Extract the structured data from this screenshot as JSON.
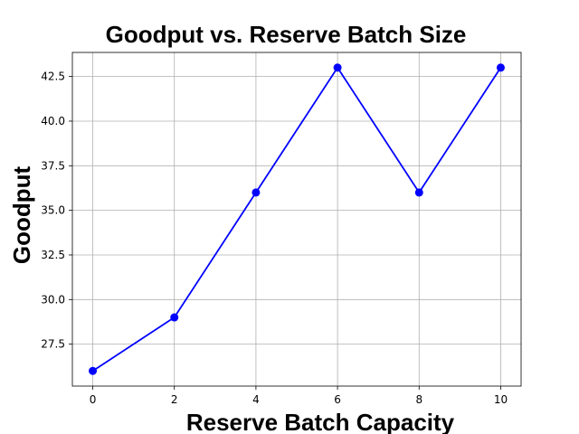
{
  "chart_data": {
    "type": "line",
    "title": "Goodput vs. Reserve Batch Size",
    "xlabel": "Reserve Batch Capacity",
    "ylabel": "Goodput",
    "x": [
      0,
      2,
      4,
      6,
      8,
      10
    ],
    "series": [
      {
        "values": [
          26,
          29,
          36,
          43,
          36,
          43
        ]
      }
    ],
    "xlim": [
      -0.5,
      10.5
    ],
    "ylim": [
      25.15,
      43.85
    ],
    "xticks": [
      0,
      2,
      4,
      6,
      8,
      10
    ],
    "xtick_labels": [
      "0",
      "2",
      "4",
      "6",
      "8",
      "10"
    ],
    "yticks": [
      27.5,
      30.0,
      32.5,
      35.0,
      37.5,
      40.0,
      42.5
    ],
    "ytick_labels": [
      "27.5",
      "30.0",
      "32.5",
      "35.0",
      "37.5",
      "40.0",
      "42.5"
    ],
    "grid": true,
    "line_color": "#0000ff",
    "marker": "circle"
  }
}
